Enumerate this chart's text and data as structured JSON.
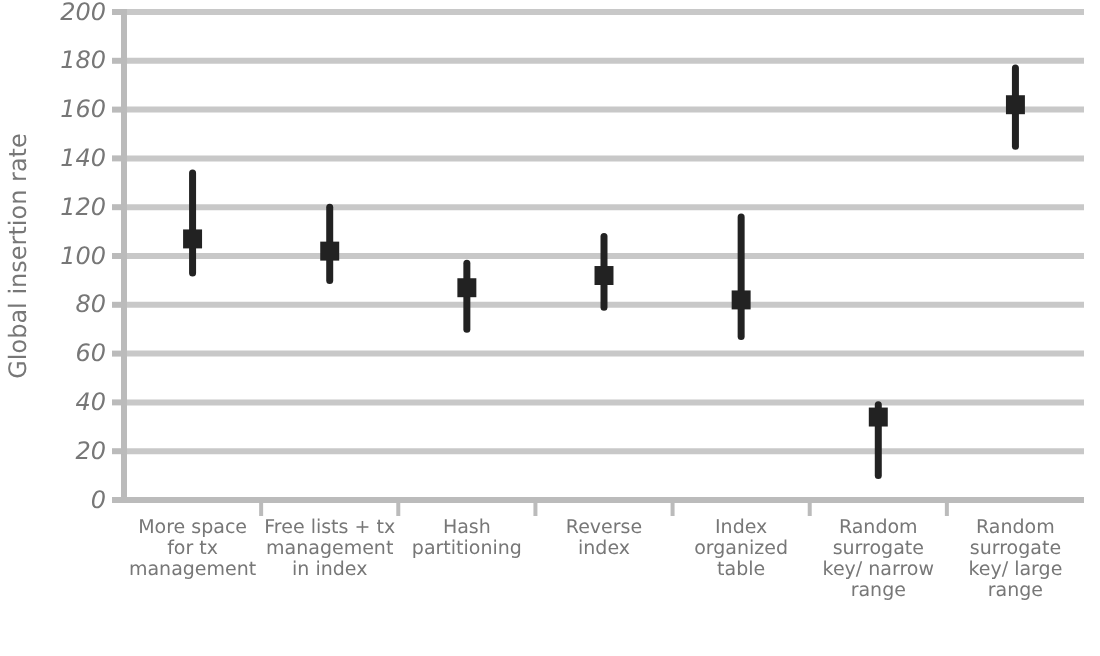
{
  "chart_data": {
    "type": "scatter",
    "ylabel": "Global insertion rate",
    "categories": [
      "More space for tx management",
      "Free lists + tx management in index",
      "Hash partitioning",
      "Reverse index",
      "Index organized table",
      "Random surrogate key/ narrow range",
      "Random surrogate key/ large range"
    ],
    "series": [
      {
        "color": "#222222",
        "values": [
          107,
          102,
          87,
          92,
          82,
          34,
          162
        ],
        "errors": [
          [
            93,
            134
          ],
          [
            90,
            120
          ],
          [
            70,
            97
          ],
          [
            79,
            108
          ],
          [
            67,
            116
          ],
          [
            10,
            39
          ],
          [
            145,
            177
          ]
        ]
      }
    ],
    "ylim": [
      0,
      200
    ],
    "yticks": [
      0,
      20,
      40,
      60,
      80,
      100,
      120,
      140,
      160,
      180,
      200
    ],
    "grid": "y",
    "marker": "square"
  }
}
